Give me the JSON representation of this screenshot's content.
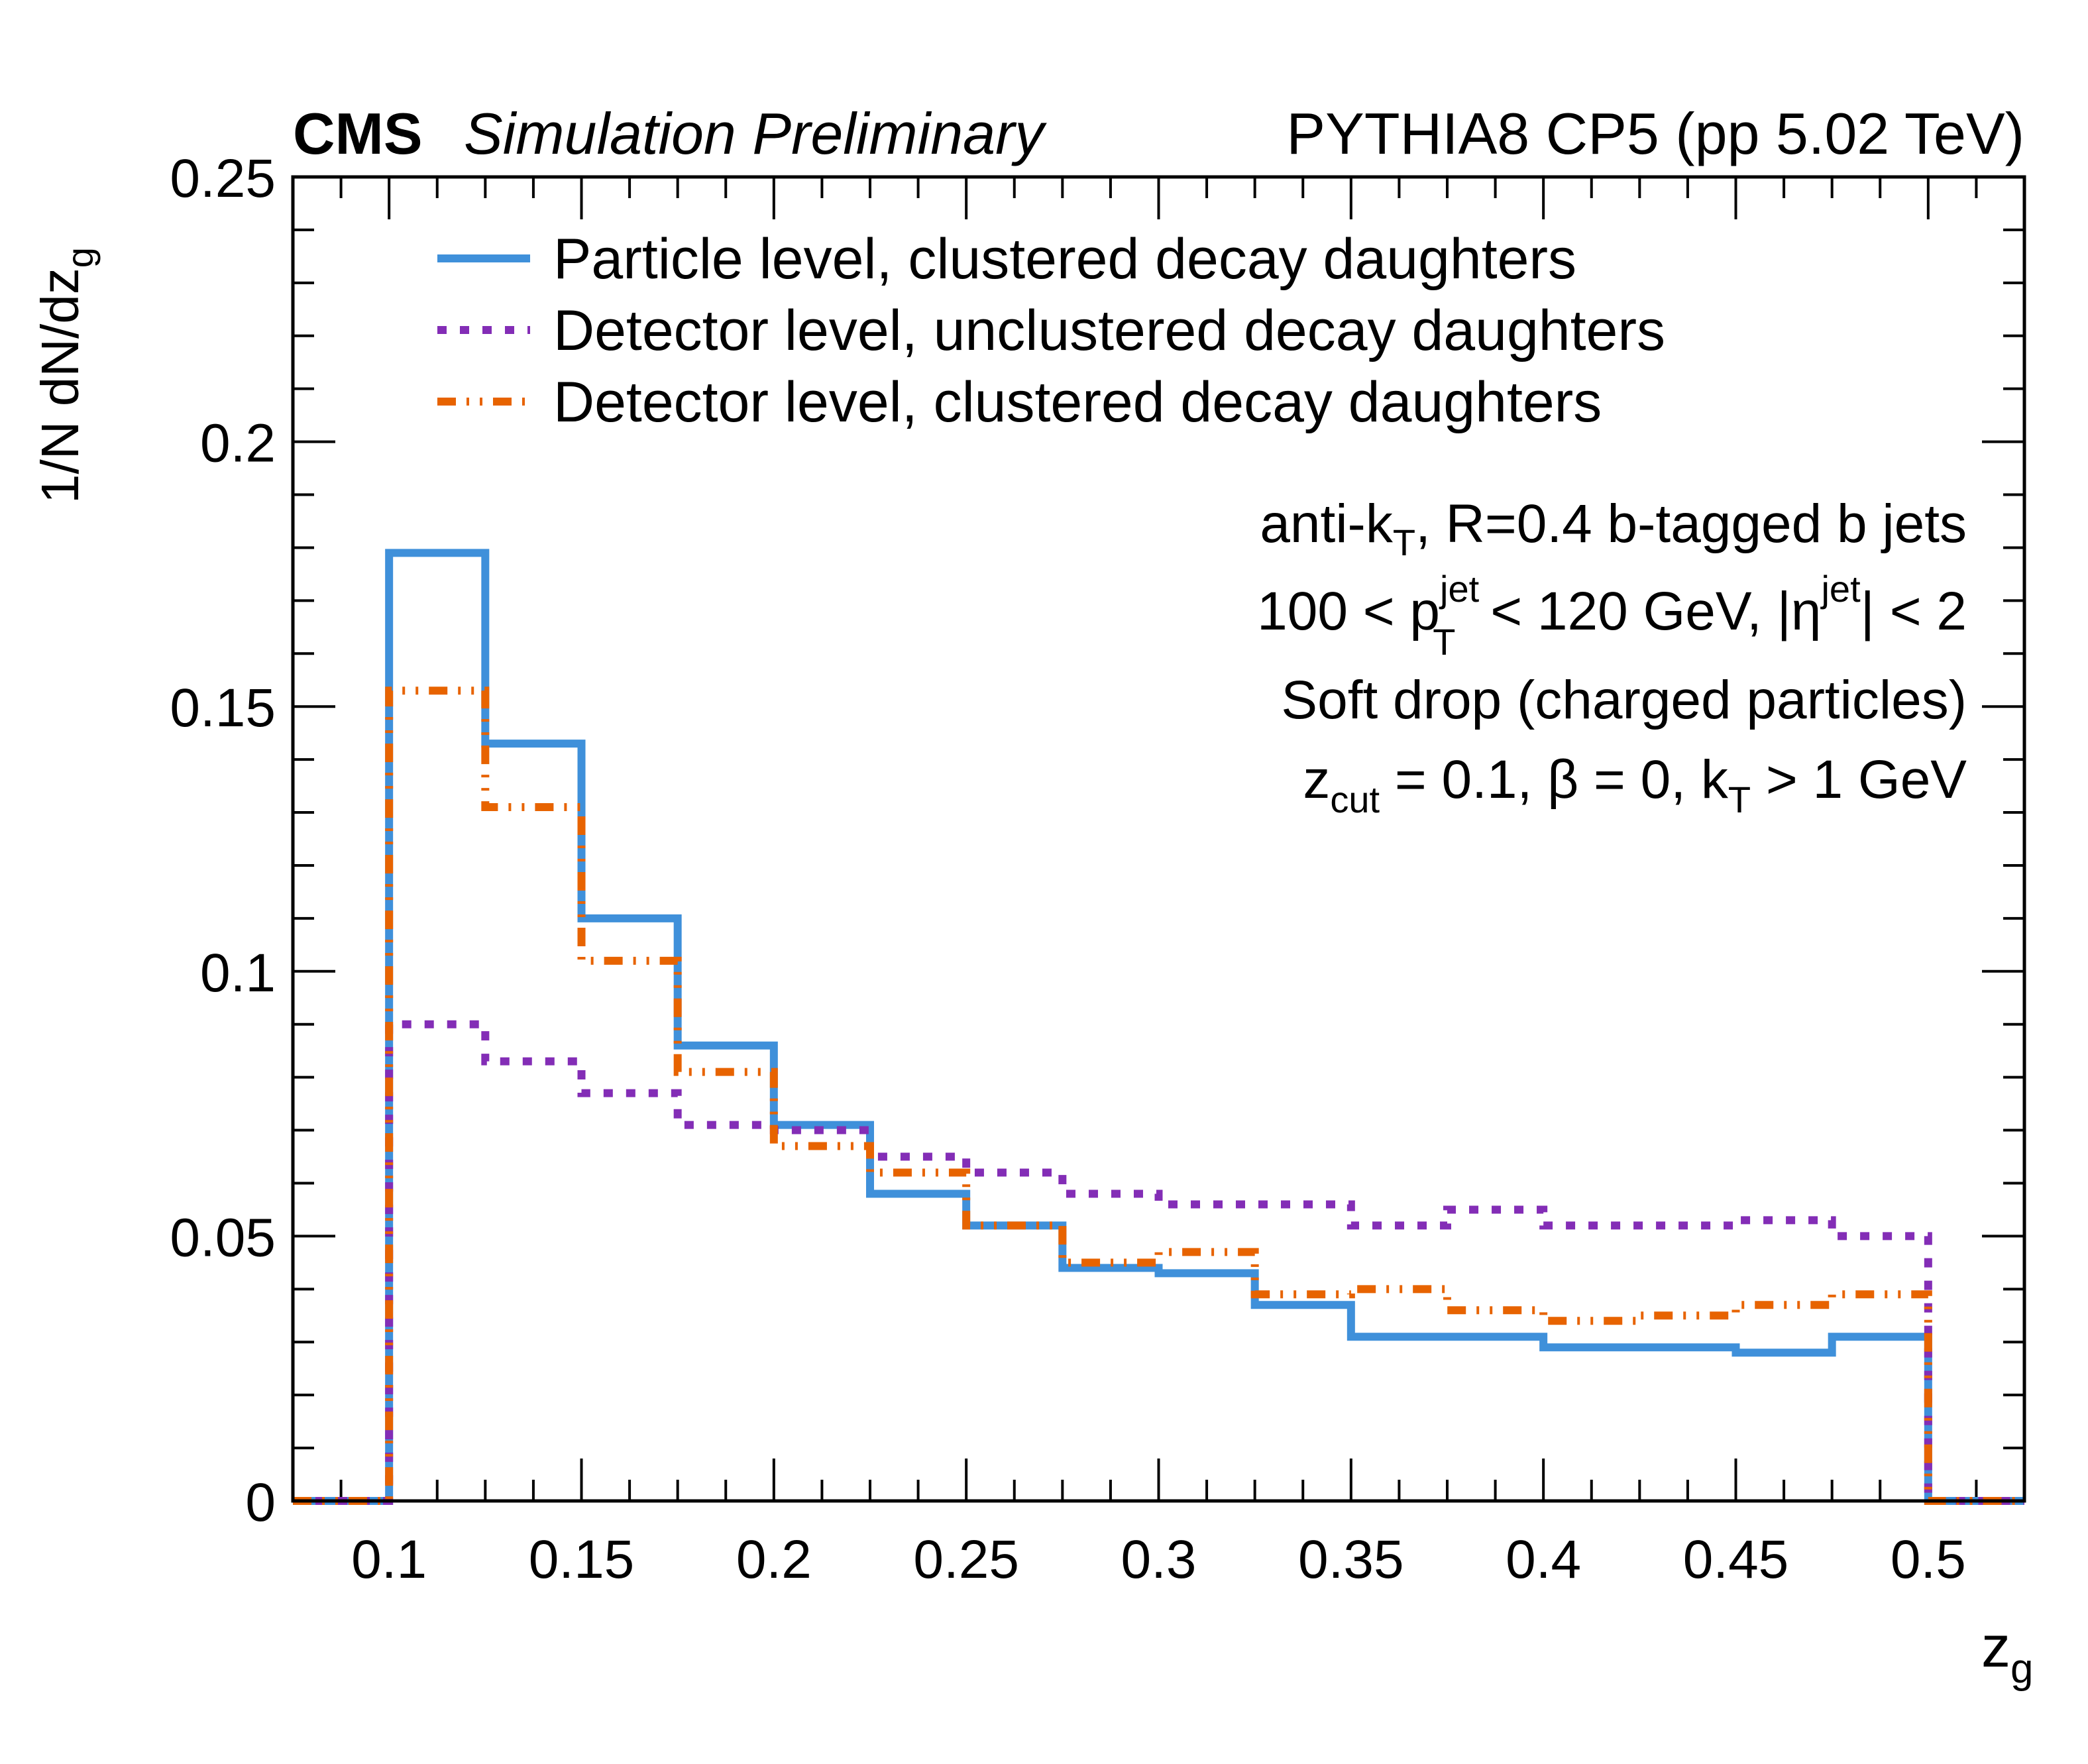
{
  "chart_data": {
    "type": "line",
    "style": "step-histogram",
    "header": {
      "cms": "CMS",
      "status": "Simulation Preliminary",
      "right": "PYTHIA8 CP5 (pp 5.02 TeV)"
    },
    "xlabel": "z",
    "xlabel_sub": "g",
    "ylabel": "1/N dN/dz",
    "ylabel_sub": "g",
    "xlim": [
      0.075,
      0.525
    ],
    "ylim": [
      0,
      0.25
    ],
    "x_ticks": [
      {
        "value": 0.1,
        "label": "0.1"
      },
      {
        "value": 0.15,
        "label": "0.15"
      },
      {
        "value": 0.2,
        "label": "0.2"
      },
      {
        "value": 0.25,
        "label": "0.25"
      },
      {
        "value": 0.3,
        "label": "0.3"
      },
      {
        "value": 0.35,
        "label": "0.35"
      },
      {
        "value": 0.4,
        "label": "0.4"
      },
      {
        "value": 0.45,
        "label": "0.45"
      },
      {
        "value": 0.5,
        "label": "0.5"
      }
    ],
    "y_ticks": [
      {
        "value": 0,
        "label": "0"
      },
      {
        "value": 0.05,
        "label": "0.05"
      },
      {
        "value": 0.1,
        "label": "0.1"
      },
      {
        "value": 0.15,
        "label": "0.15"
      },
      {
        "value": 0.2,
        "label": "0.2"
      },
      {
        "value": 0.25,
        "label": "0.25"
      }
    ],
    "bin_edges": [
      0.075,
      0.1,
      0.125,
      0.15,
      0.175,
      0.2,
      0.225,
      0.25,
      0.275,
      0.3,
      0.325,
      0.35,
      0.375,
      0.4,
      0.425,
      0.45,
      0.475,
      0.5,
      0.525
    ],
    "series": [
      {
        "name": "Particle level, clustered decay daughters",
        "color": "#3f90da",
        "dash": "solid",
        "values": [
          0,
          0.179,
          0.143,
          0.11,
          0.086,
          0.071,
          0.058,
          0.052,
          0.044,
          0.043,
          0.037,
          0.031,
          0.031,
          0.029,
          0.029,
          0.028,
          0.031,
          0
        ]
      },
      {
        "name": "Detector level, unclustered decay daughters",
        "color": "#832db6",
        "dash": "dotted",
        "values": [
          0,
          0.09,
          0.083,
          0.077,
          0.071,
          0.07,
          0.065,
          0.062,
          0.058,
          0.056,
          0.056,
          0.052,
          0.055,
          0.052,
          0.052,
          0.053,
          0.05,
          0
        ]
      },
      {
        "name": "Detector level, clustered decay daughters",
        "color": "#e76300",
        "dash": "dash-dot-dot",
        "values": [
          0,
          0.153,
          0.131,
          0.102,
          0.081,
          0.067,
          0.062,
          0.052,
          0.045,
          0.047,
          0.039,
          0.04,
          0.036,
          0.034,
          0.035,
          0.037,
          0.039,
          0
        ]
      }
    ],
    "legend_position": "top-left",
    "grid": false,
    "annotations": {
      "line1": {
        "pre": "anti-k",
        "sub": "T",
        "post": ", R=0.4 b-tagged b jets"
      },
      "line2": {
        "a": "100 < p",
        "sup1": "jet",
        "sub1": "T",
        "b": " < 120 GeV, |η",
        "sup2": "jet",
        "c": "| < 2"
      },
      "line3": "Soft drop (charged particles)",
      "line4": {
        "a": "z",
        "sub1": "cut",
        "b": " = 0.1, β = 0, k",
        "sub2": "T",
        "c": " > 1 GeV"
      }
    }
  }
}
